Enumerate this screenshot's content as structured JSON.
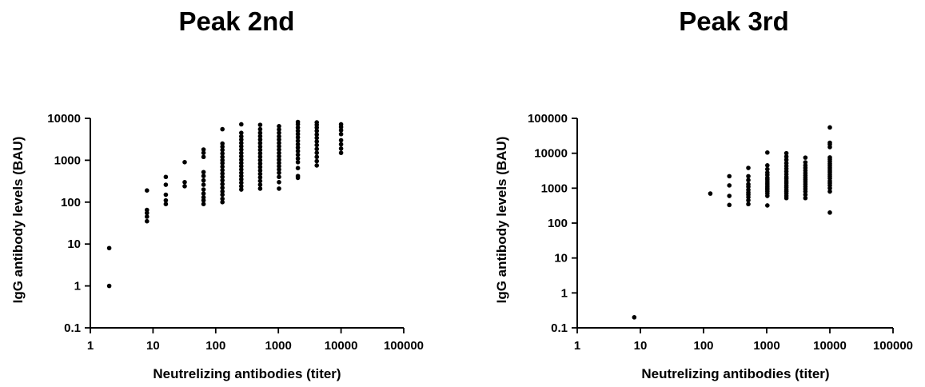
{
  "chart_data": [
    {
      "type": "scatter",
      "title": "Peak 2nd",
      "xlabel": "Neutrelizing antibodies (titer)",
      "ylabel": "IgG antibody levels (BAU)",
      "xscale": "log",
      "yscale": "log",
      "xlim": [
        1,
        100000
      ],
      "ylim": [
        0.1,
        10000
      ],
      "xticks": [
        "1",
        "10",
        "100",
        "1000",
        "10000",
        "100000"
      ],
      "yticks": [
        "0.1",
        "1",
        "10",
        "100",
        "1000",
        "10000"
      ],
      "grid": false,
      "legend": "none",
      "series": [
        {
          "points": [
            [
              2,
              1
            ],
            [
              2,
              8
            ],
            [
              8,
              35
            ],
            [
              8,
              45
            ],
            [
              8,
              55
            ],
            [
              8,
              65
            ],
            [
              8,
              190
            ],
            [
              16,
              90
            ],
            [
              16,
              110
            ],
            [
              16,
              150
            ],
            [
              16,
              260
            ],
            [
              16,
              400
            ],
            [
              32,
              240
            ],
            [
              32,
              300
            ],
            [
              32,
              900
            ],
            [
              64,
              90
            ],
            [
              64,
              110
            ],
            [
              64,
              130
            ],
            [
              64,
              160
            ],
            [
              64,
              200
            ],
            [
              64,
              260
            ],
            [
              64,
              330
            ],
            [
              64,
              420
            ],
            [
              64,
              520
            ],
            [
              64,
              1200
            ],
            [
              64,
              1500
            ],
            [
              64,
              1800
            ],
            [
              128,
              100
            ],
            [
              128,
              120
            ],
            [
              128,
              150
            ],
            [
              128,
              180
            ],
            [
              128,
              220
            ],
            [
              128,
              270
            ],
            [
              128,
              330
            ],
            [
              128,
              400
            ],
            [
              128,
              480
            ],
            [
              128,
              580
            ],
            [
              128,
              700
            ],
            [
              128,
              850
            ],
            [
              128,
              1000
            ],
            [
              128,
              1200
            ],
            [
              128,
              1450
            ],
            [
              128,
              1750
            ],
            [
              128,
              2100
            ],
            [
              128,
              2500
            ],
            [
              128,
              5500
            ],
            [
              256,
              200
            ],
            [
              256,
              240
            ],
            [
              256,
              290
            ],
            [
              256,
              350
            ],
            [
              256,
              420
            ],
            [
              256,
              500
            ],
            [
              256,
              600
            ],
            [
              256,
              720
            ],
            [
              256,
              860
            ],
            [
              256,
              1030
            ],
            [
              256,
              1240
            ],
            [
              256,
              1490
            ],
            [
              256,
              1790
            ],
            [
              256,
              2150
            ],
            [
              256,
              2580
            ],
            [
              256,
              3100
            ],
            [
              256,
              3700
            ],
            [
              256,
              4500
            ],
            [
              256,
              7200
            ],
            [
              512,
              210
            ],
            [
              512,
              260
            ],
            [
              512,
              320
            ],
            [
              512,
              390
            ],
            [
              512,
              470
            ],
            [
              512,
              570
            ],
            [
              512,
              690
            ],
            [
              512,
              830
            ],
            [
              512,
              1000
            ],
            [
              512,
              1210
            ],
            [
              512,
              1460
            ],
            [
              512,
              1760
            ],
            [
              512,
              2120
            ],
            [
              512,
              2560
            ],
            [
              512,
              3100
            ],
            [
              512,
              3740
            ],
            [
              512,
              4500
            ],
            [
              512,
              5500
            ],
            [
              512,
              7000
            ],
            [
              1024,
              210
            ],
            [
              1024,
              300
            ],
            [
              1024,
              400
            ],
            [
              1024,
              500
            ],
            [
              1024,
              600
            ],
            [
              1024,
              720
            ],
            [
              1024,
              860
            ],
            [
              1024,
              1030
            ],
            [
              1024,
              1240
            ],
            [
              1024,
              1490
            ],
            [
              1024,
              1790
            ],
            [
              1024,
              2150
            ],
            [
              1024,
              2580
            ],
            [
              1024,
              3100
            ],
            [
              1024,
              3700
            ],
            [
              1024,
              4500
            ],
            [
              1024,
              5400
            ],
            [
              1024,
              6500
            ],
            [
              2048,
              380
            ],
            [
              2048,
              420
            ],
            [
              2048,
              650
            ],
            [
              2048,
              900
            ],
            [
              2048,
              1100
            ],
            [
              2048,
              1350
            ],
            [
              2048,
              1650
            ],
            [
              2048,
              2000
            ],
            [
              2048,
              2400
            ],
            [
              2048,
              2900
            ],
            [
              2048,
              3500
            ],
            [
              2048,
              4200
            ],
            [
              2048,
              5000
            ],
            [
              2048,
              6000
            ],
            [
              2048,
              7200
            ],
            [
              2048,
              8200
            ],
            [
              4096,
              750
            ],
            [
              4096,
              950
            ],
            [
              4096,
              1200
            ],
            [
              4096,
              1500
            ],
            [
              4096,
              1850
            ],
            [
              4096,
              2300
            ],
            [
              4096,
              2800
            ],
            [
              4096,
              3400
            ],
            [
              4096,
              4100
            ],
            [
              4096,
              5000
            ],
            [
              4096,
              6000
            ],
            [
              4096,
              7000
            ],
            [
              4096,
              8000
            ],
            [
              10000,
              1500
            ],
            [
              10000,
              1900
            ],
            [
              10000,
              2400
            ],
            [
              10000,
              3000
            ],
            [
              10000,
              4200
            ],
            [
              10000,
              5200
            ],
            [
              10000,
              6200
            ],
            [
              10000,
              7200
            ]
          ]
        }
      ]
    },
    {
      "type": "scatter",
      "title": "Peak 3rd",
      "xlabel": "Neutrelizing antibodies (titer)",
      "ylabel": "IgG antibody levels (BAU)",
      "xscale": "log",
      "yscale": "log",
      "xlim": [
        1,
        100000
      ],
      "ylim": [
        0.1,
        100000
      ],
      "xticks": [
        "1",
        "10",
        "100",
        "1000",
        "10000",
        "100000"
      ],
      "yticks": [
        "0.1",
        "1",
        "10",
        "100",
        "1000",
        "10000",
        "100000"
      ],
      "grid": false,
      "legend": "none",
      "series": [
        {
          "points": [
            [
              8,
              0.2
            ],
            [
              128,
              700
            ],
            [
              256,
              330
            ],
            [
              256,
              600
            ],
            [
              256,
              1200
            ],
            [
              256,
              2200
            ],
            [
              512,
              350
            ],
            [
              512,
              450
            ],
            [
              512,
              550
            ],
            [
              512,
              650
            ],
            [
              512,
              750
            ],
            [
              512,
              900
            ],
            [
              512,
              1100
            ],
            [
              512,
              1300
            ],
            [
              512,
              1700
            ],
            [
              512,
              2200
            ],
            [
              512,
              3800
            ],
            [
              1024,
              320
            ],
            [
              1024,
              600
            ],
            [
              1024,
              700
            ],
            [
              1024,
              800
            ],
            [
              1024,
              900
            ],
            [
              1024,
              1000
            ],
            [
              1024,
              1100
            ],
            [
              1024,
              1250
            ],
            [
              1024,
              1400
            ],
            [
              1024,
              1600
            ],
            [
              1024,
              1800
            ],
            [
              1024,
              2000
            ],
            [
              1024,
              2400
            ],
            [
              1024,
              2800
            ],
            [
              1024,
              3500
            ],
            [
              1024,
              4500
            ],
            [
              1024,
              10500
            ],
            [
              2048,
              520
            ],
            [
              2048,
              600
            ],
            [
              2048,
              700
            ],
            [
              2048,
              800
            ],
            [
              2048,
              900
            ],
            [
              2048,
              1050
            ],
            [
              2048,
              1200
            ],
            [
              2048,
              1400
            ],
            [
              2048,
              1600
            ],
            [
              2048,
              1850
            ],
            [
              2048,
              2100
            ],
            [
              2048,
              2500
            ],
            [
              2048,
              3000
            ],
            [
              2048,
              3600
            ],
            [
              2048,
              4300
            ],
            [
              2048,
              5200
            ],
            [
              2048,
              6500
            ],
            [
              2048,
              8000
            ],
            [
              2048,
              10000
            ],
            [
              4096,
              520
            ],
            [
              4096,
              650
            ],
            [
              4096,
              800
            ],
            [
              4096,
              950
            ],
            [
              4096,
              1100
            ],
            [
              4096,
              1300
            ],
            [
              4096,
              1500
            ],
            [
              4096,
              1750
            ],
            [
              4096,
              2000
            ],
            [
              4096,
              2300
            ],
            [
              4096,
              2700
            ],
            [
              4096,
              3200
            ],
            [
              4096,
              3800
            ],
            [
              4096,
              4500
            ],
            [
              4096,
              5500
            ],
            [
              4096,
              7500
            ],
            [
              10000,
              200
            ],
            [
              10000,
              800
            ],
            [
              10000,
              1000
            ],
            [
              10000,
              1200
            ],
            [
              10000,
              1400
            ],
            [
              10000,
              1600
            ],
            [
              10000,
              1900
            ],
            [
              10000,
              2200
            ],
            [
              10000,
              2500
            ],
            [
              10000,
              2900
            ],
            [
              10000,
              3300
            ],
            [
              10000,
              3800
            ],
            [
              10000,
              4400
            ],
            [
              10000,
              5000
            ],
            [
              10000,
              5800
            ],
            [
              10000,
              6700
            ],
            [
              10000,
              7600
            ],
            [
              10000,
              15000
            ],
            [
              10000,
              18000
            ],
            [
              10000,
              20000
            ],
            [
              10000,
              55000
            ]
          ]
        }
      ]
    }
  ]
}
